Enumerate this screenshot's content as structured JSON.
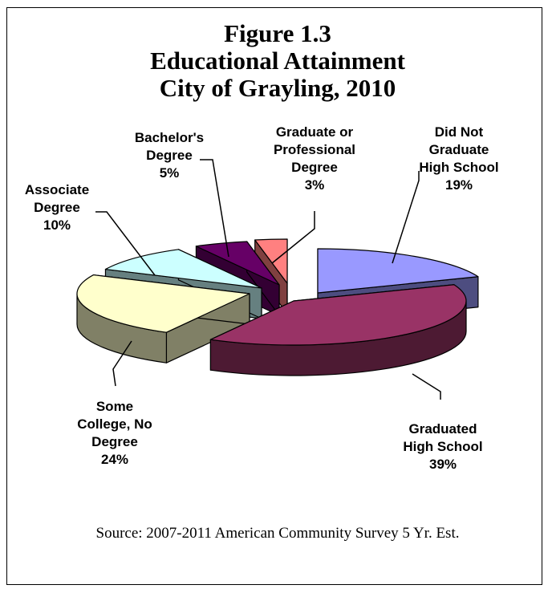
{
  "chart_data": {
    "type": "pie",
    "title_lines": [
      "Figure 1.3",
      "Educational Attainment",
      "City of Grayling, 2010"
    ],
    "slices": [
      {
        "label_lines": [
          "Did Not",
          "Graduate",
          "High School"
        ],
        "value": 19,
        "value_label": "19%",
        "top": "#9999ff",
        "side": "#4d4d80"
      },
      {
        "label_lines": [
          "Graduated",
          "High School"
        ],
        "value": 39,
        "value_label": "39%",
        "top": "#993366",
        "side": "#4d1a33"
      },
      {
        "label_lines": [
          "Some",
          "College, No",
          "Degree"
        ],
        "value": 24,
        "value_label": "24%",
        "top": "#ffffcc",
        "side": "#808066"
      },
      {
        "label_lines": [
          "Associate",
          "Degree"
        ],
        "value": 10,
        "value_label": "10%",
        "top": "#ccffff",
        "side": "#668080"
      },
      {
        "label_lines": [
          "Bachelor's",
          "Degree"
        ],
        "value": 5,
        "value_label": "5%",
        "top": "#660066",
        "side": "#330033"
      },
      {
        "label_lines": [
          "Graduate or",
          "Professional",
          "Degree"
        ],
        "value": 3,
        "value_label": "3%",
        "top": "#ff8080",
        "side": "#804040"
      }
    ],
    "source": "Source:  2007-2011 American Community Survey 5 Yr. Est."
  }
}
